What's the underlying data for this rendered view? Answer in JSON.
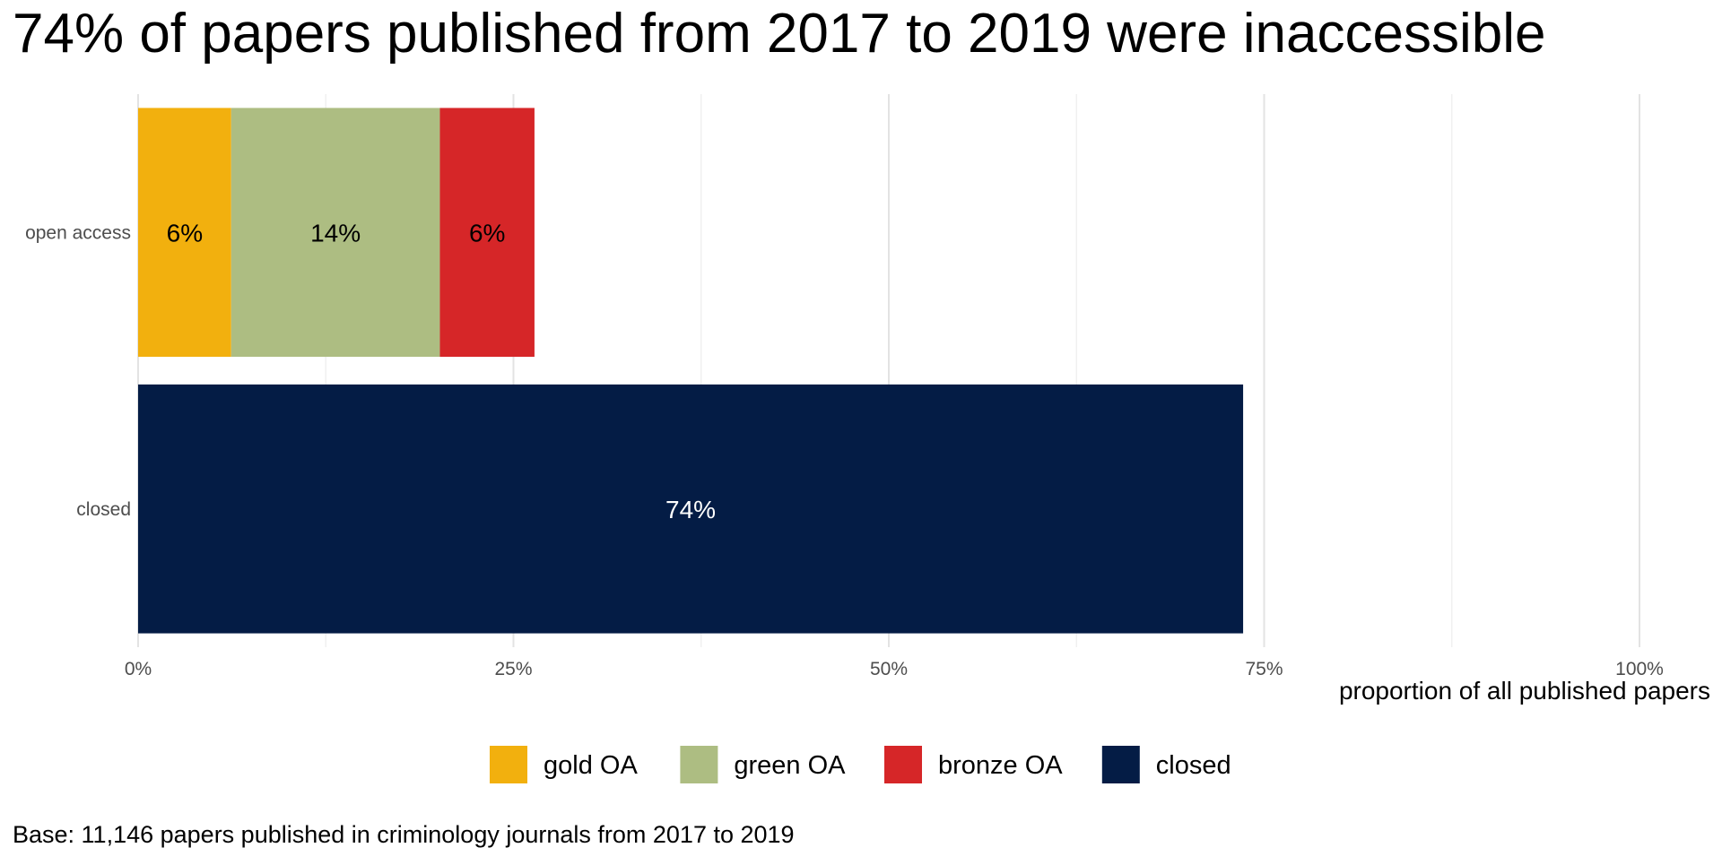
{
  "chart_data": {
    "type": "bar",
    "orientation": "horizontal",
    "stacked": true,
    "title": "74% of papers published from 2017 to 2019 were inaccessible",
    "xlabel": "proportion of all published papers",
    "ylabel": "",
    "categories": [
      "open access",
      "closed"
    ],
    "series": [
      {
        "name": "gold OA",
        "key": "gold",
        "color": "#f2b00e",
        "label_color": "#000000",
        "values": [
          6.2,
          0
        ],
        "labels": [
          "6%",
          ""
        ]
      },
      {
        "name": "green OA",
        "key": "green",
        "color": "#adbd82",
        "label_color": "#000000",
        "values": [
          13.9,
          0
        ],
        "labels": [
          "14%",
          ""
        ]
      },
      {
        "name": "bronze OA",
        "key": "bronze",
        "color": "#d62628",
        "label_color": "#000000",
        "values": [
          6.3,
          0
        ],
        "labels": [
          "6%",
          ""
        ]
      },
      {
        "name": "closed",
        "key": "closed",
        "color": "#041c45",
        "label_color": "#ffffff",
        "values": [
          0,
          73.6
        ],
        "labels": [
          "",
          "74%"
        ]
      }
    ],
    "xlim": [
      0,
      100
    ],
    "xticks": [
      0,
      25,
      50,
      75,
      100
    ],
    "xtick_labels": [
      "0%",
      "25%",
      "50%",
      "75%",
      "100%"
    ],
    "grid": true,
    "legend_position": "bottom",
    "caption": "Base: 11,146 papers published in criminology journals from 2017 to 2019"
  }
}
